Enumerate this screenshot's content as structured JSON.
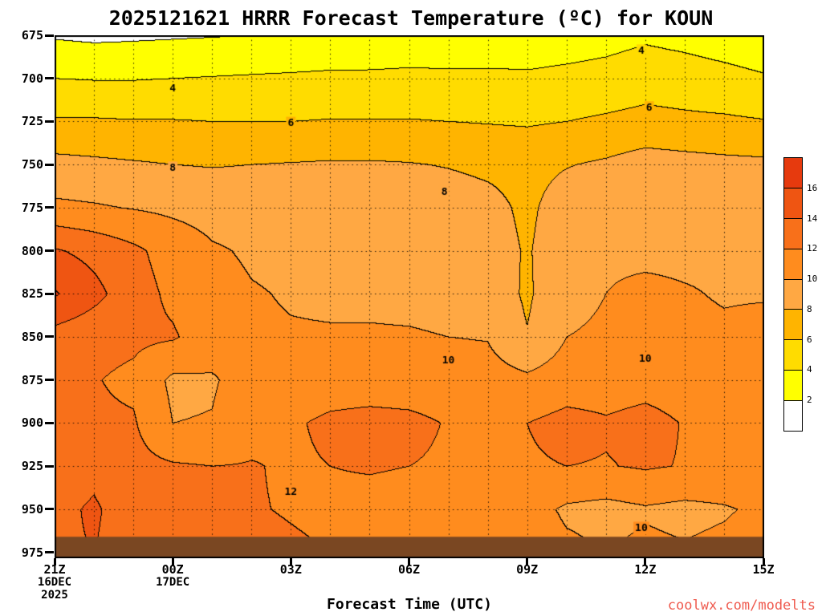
{
  "title": "2025121621 HRRR Forecast Temperature (ºC) for KOUN",
  "xlabel": "Forecast Time (UTC)",
  "watermark": "coolwx.com/modelts",
  "chart_data": {
    "type": "heatmap",
    "title": "2025121621 HRRR Forecast Temperature (ºC) for KOUN",
    "units": "ºC",
    "station": "KOUN",
    "model": "HRRR",
    "run": "2025121621",
    "contour_interval": 2,
    "levels": [
      2,
      4,
      6,
      8,
      10,
      12,
      14,
      16
    ],
    "palette_colors": [
      "#ffffff",
      "#ffff00",
      "#ffdc00",
      "#ffb400",
      "#ffa843",
      "#ff8c1e",
      "#f8701a",
      "#ef5512",
      "#e63a0e"
    ],
    "x": {
      "unit": "hours from 21Z 16DEC2025",
      "max_hour": 18,
      "ticks": [
        {
          "hour": 0,
          "label": "21Z",
          "sublabels": [
            "16DEC",
            "2025"
          ]
        },
        {
          "hour": 3,
          "label": "00Z",
          "sublabels": [
            "17DEC"
          ]
        },
        {
          "hour": 6,
          "label": "03Z"
        },
        {
          "hour": 9,
          "label": "06Z"
        },
        {
          "hour": 12,
          "label": "09Z"
        },
        {
          "hour": 15,
          "label": "12Z"
        },
        {
          "hour": 18,
          "label": "15Z"
        }
      ]
    },
    "y": {
      "unit": "hPa",
      "range": [
        675,
        978
      ],
      "tick_values": [
        675,
        700,
        725,
        750,
        775,
        800,
        825,
        850,
        875,
        900,
        925,
        950,
        975
      ]
    },
    "pressures": [
      675,
      700,
      725,
      750,
      775,
      800,
      825,
      850,
      875,
      900,
      925,
      950,
      975
    ],
    "temperature_grid": [
      [
        1.8,
        1.6,
        1.7,
        1.8,
        1.9,
        2.0,
        2.1,
        2.3,
        2.4,
        2.5,
        2.6,
        2.7,
        2.8,
        3.0,
        3.3,
        3.7,
        3.4,
        3.0,
        2.6
      ],
      [
        4.0,
        3.9,
        3.9,
        4.0,
        4.1,
        4.2,
        4.3,
        4.4,
        4.4,
        4.5,
        4.4,
        4.4,
        4.3,
        4.5,
        4.7,
        5.1,
        4.9,
        4.6,
        4.2
      ],
      [
        6.2,
        6.2,
        6.1,
        6.1,
        6.0,
        6.0,
        6.0,
        6.1,
        6.1,
        6.1,
        6.0,
        5.9,
        5.8,
        6.0,
        6.3,
        6.6,
        6.4,
        6.3,
        6.1
      ],
      [
        8.6,
        8.4,
        8.2,
        8.0,
        7.9,
        8.0,
        8.1,
        8.2,
        8.2,
        8.1,
        7.9,
        7.6,
        7.4,
        7.9,
        8.3,
        8.9,
        8.7,
        8.5,
        8.4
      ],
      [
        10.4,
        10.2,
        9.9,
        9.6,
        9.3,
        9.2,
        9.2,
        9.3,
        9.3,
        9.2,
        9.0,
        8.6,
        7.6,
        9.0,
        9.6,
        9.9,
        9.7,
        9.4,
        9.2
      ],
      [
        14.2,
        13.4,
        12.4,
        11.2,
        10.2,
        9.8,
        9.7,
        9.9,
        9.9,
        9.8,
        9.6,
        9.0,
        7.8,
        9.4,
        9.8,
        9.7,
        9.7,
        9.8,
        9.9
      ],
      [
        16.2,
        14.6,
        12.8,
        11.6,
        10.6,
        10.1,
        9.9,
        9.8,
        9.8,
        9.7,
        9.6,
        9.2,
        7.7,
        9.6,
        10.0,
        10.3,
        10.1,
        9.9,
        9.9
      ],
      [
        13.2,
        12.6,
        12.4,
        12.2,
        11.0,
        10.2,
        10.1,
        10.1,
        10.1,
        10.1,
        10.0,
        9.9,
        8.1,
        10.0,
        10.2,
        10.6,
        10.3,
        10.2,
        10.4
      ],
      [
        12.6,
        12.1,
        11.6,
        9.6,
        9.8,
        10.9,
        11.1,
        11.2,
        11.2,
        11.1,
        11.0,
        10.8,
        10.4,
        11.0,
        11.1,
        11.3,
        11.1,
        10.9,
        11.1
      ],
      [
        12.8,
        12.3,
        12.2,
        10.0,
        10.1,
        11.4,
        11.8,
        12.3,
        12.5,
        12.4,
        11.9,
        11.6,
        12.0,
        12.6,
        12.2,
        12.6,
        11.9,
        11.6,
        11.8
      ],
      [
        13.2,
        13.6,
        12.6,
        12.2,
        12.0,
        12.1,
        11.8,
        12.0,
        12.1,
        12.0,
        11.8,
        11.6,
        11.8,
        12.0,
        11.9,
        12.2,
        11.9,
        11.7,
        12.0
      ],
      [
        13.6,
        14.2,
        13.2,
        12.6,
        12.3,
        12.1,
        11.9,
        11.7,
        11.6,
        11.5,
        11.4,
        11.2,
        10.8,
        9.7,
        9.4,
        9.8,
        9.5,
        9.8,
        10.4
      ],
      [
        13.8,
        14.0,
        13.4,
        12.9,
        12.6,
        12.4,
        12.2,
        12.0,
        11.9,
        11.8,
        11.7,
        11.5,
        11.2,
        10.4,
        10.0,
        10.4,
        10.2,
        10.5,
        11.0
      ]
    ],
    "contour_labels": [
      {
        "v": "4",
        "h": 3.0,
        "p": 706
      },
      {
        "v": "6",
        "h": 6.0,
        "p": 726
      },
      {
        "v": "8",
        "h": 3.0,
        "p": 752
      },
      {
        "v": "8",
        "h": 9.9,
        "p": 766
      },
      {
        "v": "10",
        "h": 10.0,
        "p": 864
      },
      {
        "v": "12",
        "h": 6.0,
        "p": 940
      },
      {
        "v": "4",
        "h": 14.9,
        "p": 684
      },
      {
        "v": "6",
        "h": 15.1,
        "p": 717
      },
      {
        "v": "10",
        "h": 15.0,
        "p": 863
      },
      {
        "v": "10",
        "h": 14.9,
        "p": 961
      }
    ],
    "surface_band": {
      "from_pressure": 966,
      "color": "#7a4722"
    },
    "gridlines": {
      "style": "dotted",
      "horizontal_every_hpa": 25,
      "vertical_every_hours": 1
    },
    "colorbar": {
      "position": "right",
      "tick_labels": [
        "16",
        "14",
        "12",
        "10",
        "8",
        "6",
        "4",
        "2"
      ],
      "colors_top_to_bottom": [
        "#e63a0e",
        "#ef5512",
        "#f8701a",
        "#ff8c1e",
        "#ffa843",
        "#ffb400",
        "#ffdc00",
        "#ffff00",
        "#ffffff"
      ]
    }
  }
}
